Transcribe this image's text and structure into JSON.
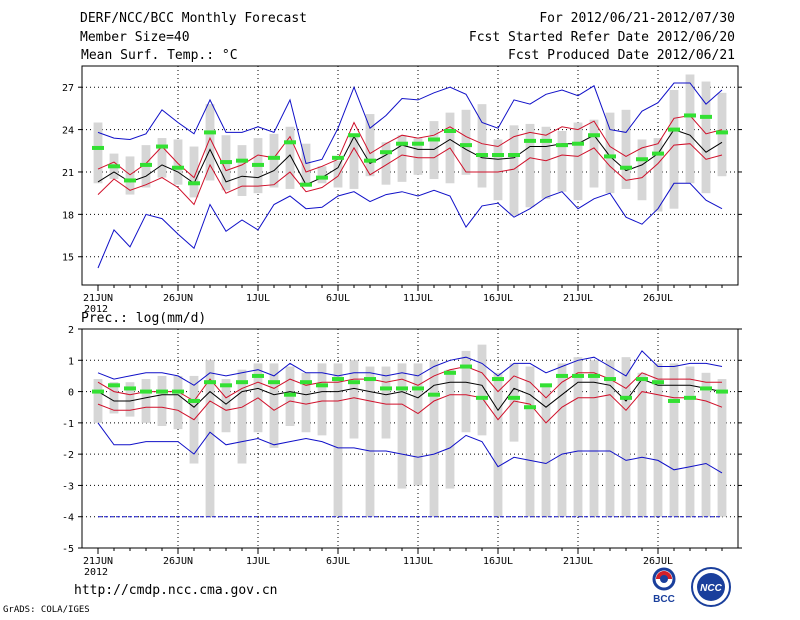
{
  "header": {
    "left": [
      "DERF/NCC/BCC Monthly Forecast",
      "Member Size=40",
      "Mean Surf. Temp.: °C"
    ],
    "right": [
      "For 2012/06/21-2012/07/30",
      "Fcst Started Refer Date 2012/06/20",
      "Fcst Produced Date 2012/06/21"
    ]
  },
  "footer": {
    "url": "http://cmdp.ncc.cma.gov.cn",
    "credit": "GrADS: COLA/IGES"
  },
  "logos": {
    "bcc": "BCC",
    "ncc": "NCC"
  },
  "colors": {
    "bar": "#d6d6d6",
    "mean": "#000000",
    "spread": "#d0102a",
    "extreme": "#1010c8",
    "obs": "#33e033",
    "grid": "#000000"
  },
  "chart_data": [
    {
      "type": "line",
      "title": "Mean Surf. Temp.: °C",
      "x_tick_labels": [
        "21JUN",
        "26JUN",
        "1JUL",
        "6JUL",
        "11JUL",
        "16JUL",
        "21JUL",
        "26JUL"
      ],
      "x_tick_days": [
        1,
        6,
        11,
        16,
        21,
        26,
        31,
        36
      ],
      "year_label": "2012",
      "xlim": [
        0,
        41
      ],
      "ylim": [
        13,
        28.5
      ],
      "y_ticks": [
        15,
        18,
        21,
        24,
        27
      ],
      "grid": true,
      "series": [
        {
          "name": "bar_min",
          "values": [
            20.2,
            20.5,
            19.4,
            19.9,
            20.6,
            20.1,
            19.2,
            20.4,
            19.7,
            19.3,
            19.5,
            19.9,
            19.8,
            20.0,
            20.2,
            19.9,
            19.8,
            20.7,
            20.1,
            20.3,
            20.8,
            20.5,
            20.2,
            20.8,
            19.9,
            19.0,
            17.9,
            18.5,
            19.1,
            19.6,
            19.0,
            19.9,
            19.5,
            19.8,
            19.0,
            18.2,
            18.4,
            20.2,
            19.5,
            20.7
          ]
        },
        {
          "name": "bar_max",
          "values": [
            24.5,
            22.3,
            22.1,
            22.9,
            23.4,
            23.3,
            22.8,
            25.8,
            23.6,
            22.9,
            23.4,
            23.7,
            24.2,
            23.0,
            21.4,
            21.8,
            23.7,
            25.1,
            23.1,
            23.6,
            23.4,
            24.6,
            25.2,
            25.4,
            25.8,
            23.3,
            24.3,
            24.4,
            24.2,
            23.9,
            24.5,
            24.7,
            25.2,
            25.4,
            23.3,
            23.4,
            26.8,
            27.9,
            27.4,
            26.6
          ]
        },
        {
          "name": "max",
          "values": [
            23.8,
            23.4,
            23.3,
            23.7,
            25.4,
            24.5,
            23.7,
            26.1,
            23.8,
            23.8,
            24.2,
            23.8,
            26.1,
            21.6,
            21.9,
            24.1,
            27.0,
            24.1,
            25.0,
            26.2,
            26.1,
            26.6,
            27.0,
            26.5,
            24.5,
            24.1,
            26.1,
            25.8,
            26.5,
            26.8,
            26.4,
            27.1,
            24.0,
            23.8,
            25.3,
            25.9,
            27.3,
            27.3,
            25.8,
            26.8
          ]
        },
        {
          "name": "p_high",
          "values": [
            21.2,
            21.7,
            20.8,
            21.6,
            22.8,
            21.6,
            20.6,
            23.4,
            21.1,
            21.5,
            22.2,
            22.0,
            23.5,
            21.0,
            21.4,
            21.9,
            24.5,
            22.3,
            23.0,
            23.6,
            23.4,
            23.6,
            24.2,
            23.5,
            23.0,
            22.8,
            23.5,
            23.8,
            23.6,
            24.2,
            24.0,
            24.6,
            22.8,
            22.1,
            22.7,
            23.0,
            24.8,
            25.0,
            23.7,
            24.0
          ]
        },
        {
          "name": "mean",
          "values": [
            20.3,
            21.0,
            20.3,
            20.7,
            21.5,
            21.0,
            20.2,
            22.6,
            20.3,
            20.7,
            20.6,
            21.1,
            22.2,
            20.1,
            20.6,
            21.3,
            23.5,
            21.6,
            22.2,
            22.9,
            22.6,
            22.6,
            23.3,
            22.6,
            22.0,
            21.9,
            22.0,
            22.8,
            22.8,
            23.0,
            23.0,
            23.6,
            22.1,
            21.1,
            21.5,
            22.3,
            24.0,
            23.6,
            22.4,
            23.1
          ]
        },
        {
          "name": "p_low",
          "values": [
            19.4,
            20.5,
            19.7,
            20.1,
            20.6,
            19.9,
            18.7,
            21.5,
            19.5,
            20.0,
            20.0,
            20.1,
            21.0,
            19.6,
            19.9,
            20.7,
            22.7,
            20.8,
            21.5,
            22.2,
            22.0,
            22.0,
            22.7,
            21.0,
            21.0,
            21.0,
            21.2,
            22.0,
            21.8,
            22.2,
            22.1,
            22.7,
            21.4,
            20.4,
            20.6,
            21.6,
            22.9,
            23.0,
            21.9,
            22.2
          ]
        },
        {
          "name": "min",
          "values": [
            14.2,
            16.9,
            15.7,
            18.0,
            17.7,
            16.6,
            15.6,
            18.7,
            16.8,
            17.6,
            16.9,
            18.7,
            19.3,
            18.4,
            18.5,
            19.3,
            19.6,
            18.9,
            19.4,
            19.6,
            19.3,
            19.7,
            19.3,
            17.1,
            18.6,
            18.8,
            17.8,
            18.4,
            19.2,
            19.6,
            18.4,
            19.1,
            19.5,
            17.8,
            17.3,
            18.4,
            20.2,
            20.2,
            19.0,
            18.4
          ]
        },
        {
          "name": "obs",
          "values": [
            22.7,
            21.4,
            20.4,
            21.5,
            22.8,
            21.3,
            20.2,
            23.8,
            21.7,
            21.8,
            21.5,
            22.0,
            23.1,
            20.1,
            20.6,
            22.0,
            23.6,
            21.8,
            22.4,
            23.0,
            23.0,
            23.3,
            23.9,
            22.9,
            22.2,
            22.2,
            22.2,
            23.2,
            23.2,
            22.9,
            23.0,
            23.6,
            22.1,
            21.3,
            21.9,
            22.3,
            24.0,
            25.0,
            24.9,
            23.8
          ]
        }
      ]
    },
    {
      "type": "line",
      "title": "Prec.: log(mm/d)",
      "x_tick_labels": [
        "21JUN",
        "26JUN",
        "1JUL",
        "6JUL",
        "11JUL",
        "16JUL",
        "21JUL",
        "26JUL"
      ],
      "x_tick_days": [
        1,
        6,
        11,
        16,
        21,
        26,
        31,
        36
      ],
      "year_label": "2012",
      "xlim": [
        0,
        41
      ],
      "ylim": [
        -5,
        2
      ],
      "y_ticks": [
        -5,
        -4,
        -3,
        -2,
        -1,
        0,
        1,
        2
      ],
      "grid": true,
      "series": [
        {
          "name": "bar_min",
          "values": [
            -1.0,
            -0.7,
            -0.8,
            -1.0,
            -1.1,
            -1.2,
            -2.3,
            -4.0,
            -1.3,
            -2.3,
            -1.3,
            -1.8,
            -1.1,
            -1.3,
            -1.4,
            -4.0,
            -1.5,
            -4.0,
            -1.5,
            -3.1,
            -3.0,
            -4.0,
            -3.1,
            -1.3,
            -1.4,
            -4.0,
            -1.6,
            -4.0,
            -4.0,
            -4.0,
            -4.0,
            -4.0,
            -4.0,
            -4.0,
            -4.0,
            -4.0,
            -4.0,
            -4.0,
            -4.0,
            -4.0
          ]
        },
        {
          "name": "bar_max",
          "values": [
            0.4,
            0.3,
            0.3,
            0.4,
            0.5,
            0.5,
            0.5,
            1.0,
            0.4,
            0.7,
            0.9,
            0.9,
            0.8,
            0.6,
            0.9,
            0.9,
            1.0,
            0.8,
            0.8,
            0.9,
            0.9,
            1.0,
            0.7,
            1.3,
            1.5,
            0.6,
            0.9,
            0.8,
            0.2,
            0.9,
            1.1,
            1.0,
            1.0,
            1.1,
            0.6,
            0.9,
            0.9,
            0.8,
            0.6,
            0.4
          ]
        },
        {
          "name": "max",
          "values": [
            0.6,
            0.4,
            0.5,
            0.6,
            0.6,
            0.5,
            0.2,
            0.6,
            0.5,
            0.6,
            0.7,
            0.5,
            0.9,
            0.6,
            0.6,
            0.5,
            0.6,
            0.6,
            0.5,
            0.6,
            0.5,
            0.8,
            1.0,
            1.1,
            0.9,
            0.5,
            0.9,
            0.9,
            0.6,
            0.8,
            1.0,
            1.1,
            0.8,
            0.5,
            1.3,
            0.8,
            0.8,
            0.9,
            0.9,
            0.8
          ]
        },
        {
          "name": "p_high",
          "values": [
            0.3,
            0.0,
            -0.1,
            0.0,
            0.0,
            0.0,
            -0.3,
            0.4,
            -0.2,
            0.1,
            0.3,
            0.1,
            0.4,
            0.2,
            0.3,
            0.3,
            0.4,
            0.4,
            0.3,
            0.4,
            0.2,
            0.5,
            0.7,
            0.8,
            0.6,
            0.0,
            0.5,
            0.3,
            -0.2,
            0.3,
            0.6,
            0.6,
            0.4,
            0.1,
            0.6,
            0.4,
            0.4,
            0.4,
            0.3,
            0.3
          ]
        },
        {
          "name": "mean",
          "values": [
            0.0,
            -0.3,
            -0.3,
            -0.2,
            -0.1,
            -0.1,
            -0.5,
            0.0,
            -0.4,
            0.0,
            0.1,
            -0.1,
            0.0,
            -0.1,
            0.0,
            0.0,
            0.1,
            0.0,
            -0.1,
            0.0,
            -0.2,
            0.2,
            0.3,
            0.3,
            0.2,
            -0.6,
            0.1,
            -0.1,
            -0.5,
            -0.1,
            0.3,
            0.3,
            0.2,
            -0.3,
            0.4,
            0.2,
            0.2,
            0.2,
            0.1,
            0.0
          ]
        },
        {
          "name": "p_low",
          "values": [
            -0.4,
            -0.6,
            -0.6,
            -0.5,
            -0.5,
            -0.6,
            -0.9,
            -0.3,
            -0.6,
            -0.5,
            -0.2,
            -0.6,
            -0.3,
            -0.4,
            -0.3,
            -0.3,
            -0.2,
            -0.3,
            -0.4,
            -0.4,
            -0.7,
            -0.3,
            -0.1,
            -0.1,
            -0.2,
            -0.9,
            -0.3,
            -0.4,
            -1.0,
            -0.5,
            -0.2,
            -0.2,
            -0.1,
            -0.6,
            0.0,
            -0.1,
            -0.2,
            -0.2,
            -0.3,
            -0.5
          ]
        },
        {
          "name": "min",
          "values": [
            -1.0,
            -1.7,
            -1.7,
            -1.6,
            -1.6,
            -1.6,
            -2.0,
            -1.3,
            -1.7,
            -1.6,
            -1.5,
            -1.7,
            -1.6,
            -1.5,
            -1.6,
            -1.8,
            -1.8,
            -1.9,
            -1.9,
            -2.0,
            -2.1,
            -2.0,
            -1.8,
            -1.4,
            -1.6,
            -2.4,
            -2.1,
            -2.2,
            -2.3,
            -2.0,
            -1.9,
            -1.9,
            -1.9,
            -2.2,
            -2.1,
            -2.2,
            -2.5,
            -2.4,
            -2.3,
            -2.6
          ]
        },
        {
          "name": "floor",
          "values": [
            -4.0,
            -4.0,
            -4.0,
            -4.0,
            -4.0,
            -4.0,
            -4.0,
            -4.0,
            -4.0,
            -4.0,
            -4.0,
            -4.0,
            -4.0,
            -4.0,
            -4.0,
            -4.0,
            -4.0,
            -4.0,
            -4.0,
            -4.0,
            -4.0,
            -4.0,
            -4.0,
            -4.0,
            -4.0,
            -4.0,
            -4.0,
            -4.0,
            -4.0,
            -4.0,
            -4.0,
            -4.0,
            -4.0,
            -4.0,
            -4.0,
            -4.0,
            -4.0,
            -4.0,
            -4.0,
            -4.0
          ]
        },
        {
          "name": "obs",
          "values": [
            0.0,
            0.2,
            0.1,
            0.0,
            0.0,
            0.0,
            -0.3,
            0.3,
            0.2,
            0.3,
            0.5,
            0.3,
            -0.1,
            0.3,
            0.2,
            0.4,
            0.3,
            0.4,
            0.1,
            0.1,
            0.1,
            -0.1,
            0.6,
            0.8,
            -0.2,
            0.4,
            -0.2,
            -0.5,
            0.2,
            0.5,
            0.5,
            0.5,
            0.4,
            -0.2,
            0.4,
            0.3,
            -0.3,
            -0.2,
            0.1,
            0.0
          ]
        }
      ]
    }
  ]
}
